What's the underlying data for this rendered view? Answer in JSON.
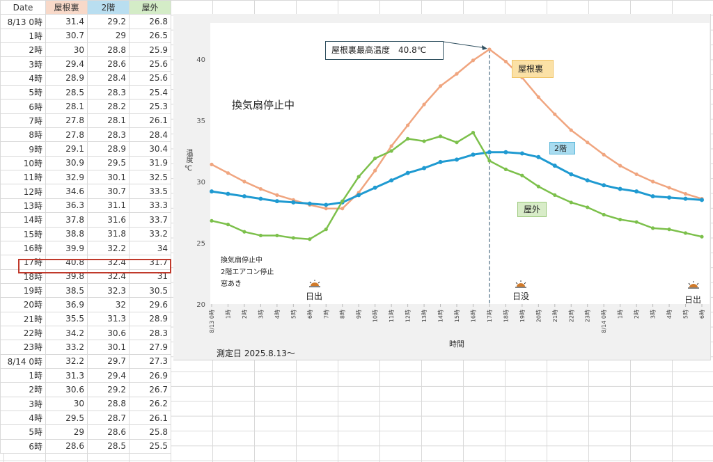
{
  "table": {
    "headers": [
      {
        "label": "Date",
        "bg": "#ffffff"
      },
      {
        "label": "屋根裏",
        "bg": "#f8d9c9"
      },
      {
        "label": "2階",
        "bg": "#b9def0"
      },
      {
        "label": "屋外",
        "bg": "#d4ecc7"
      }
    ],
    "rows": [
      {
        "date": "8/13  0時",
        "roof": "31.4",
        "floor2": "29.2",
        "outdoor": "26.8"
      },
      {
        "date": "1時",
        "roof": "30.7",
        "floor2": "29",
        "outdoor": "26.5"
      },
      {
        "date": "2時",
        "roof": "30",
        "floor2": "28.8",
        "outdoor": "25.9"
      },
      {
        "date": "3時",
        "roof": "29.4",
        "floor2": "28.6",
        "outdoor": "25.6"
      },
      {
        "date": "4時",
        "roof": "28.9",
        "floor2": "28.4",
        "outdoor": "25.6"
      },
      {
        "date": "5時",
        "roof": "28.5",
        "floor2": "28.3",
        "outdoor": "25.4"
      },
      {
        "date": "6時",
        "roof": "28.1",
        "floor2": "28.2",
        "outdoor": "25.3"
      },
      {
        "date": "7時",
        "roof": "27.8",
        "floor2": "28.1",
        "outdoor": "26.1"
      },
      {
        "date": "8時",
        "roof": "27.8",
        "floor2": "28.3",
        "outdoor": "28.4"
      },
      {
        "date": "9時",
        "roof": "29.1",
        "floor2": "28.9",
        "outdoor": "30.4"
      },
      {
        "date": "10時",
        "roof": "30.9",
        "floor2": "29.5",
        "outdoor": "31.9"
      },
      {
        "date": "11時",
        "roof": "32.9",
        "floor2": "30.1",
        "outdoor": "32.5"
      },
      {
        "date": "12時",
        "roof": "34.6",
        "floor2": "30.7",
        "outdoor": "33.5"
      },
      {
        "date": "13時",
        "roof": "36.3",
        "floor2": "31.1",
        "outdoor": "33.3"
      },
      {
        "date": "14時",
        "roof": "37.8",
        "floor2": "31.6",
        "outdoor": "33.7"
      },
      {
        "date": "15時",
        "roof": "38.8",
        "floor2": "31.8",
        "outdoor": "33.2"
      },
      {
        "date": "16時",
        "roof": "39.9",
        "floor2": "32.2",
        "outdoor": "34"
      },
      {
        "date": "17時",
        "roof": "40.8",
        "floor2": "32.4",
        "outdoor": "31.7"
      },
      {
        "date": "18時",
        "roof": "39.8",
        "floor2": "32.4",
        "outdoor": "31"
      },
      {
        "date": "19時",
        "roof": "38.5",
        "floor2": "32.3",
        "outdoor": "30.5"
      },
      {
        "date": "20時",
        "roof": "36.9",
        "floor2": "32",
        "outdoor": "29.6"
      },
      {
        "date": "21時",
        "roof": "35.5",
        "floor2": "31.3",
        "outdoor": "28.9"
      },
      {
        "date": "22時",
        "roof": "34.2",
        "floor2": "30.6",
        "outdoor": "28.3"
      },
      {
        "date": "23時",
        "roof": "33.2",
        "floor2": "30.1",
        "outdoor": "27.9"
      },
      {
        "date": "8/14  0時",
        "roof": "32.2",
        "floor2": "29.7",
        "outdoor": "27.3"
      },
      {
        "date": "1時",
        "roof": "31.3",
        "floor2": "29.4",
        "outdoor": "26.9"
      },
      {
        "date": "2時",
        "roof": "30.6",
        "floor2": "29.2",
        "outdoor": "26.7"
      },
      {
        "date": "3時",
        "roof": "30",
        "floor2": "28.8",
        "outdoor": "26.2"
      },
      {
        "date": "4時",
        "roof": "29.5",
        "floor2": "28.7",
        "outdoor": "26.1"
      },
      {
        "date": "5時",
        "roof": "29",
        "floor2": "28.6",
        "outdoor": "25.8"
      },
      {
        "date": "6時",
        "roof": "28.6",
        "floor2": "28.5",
        "outdoor": "25.5"
      }
    ],
    "highlighted_row_index": 17,
    "highlight_color": "#c0392b"
  },
  "chart_annotations": {
    "peak_callout": "屋根裏最高温度　40.8℃",
    "fan_stop_title": "換気扇停止中",
    "conditions": [
      "換気扇停止中",
      "2階エアコン停止",
      "窓あき"
    ],
    "sunrise_1": "日出",
    "sunset": "日没",
    "sunrise_2": "日出",
    "measure_date": "測定日 2025.8.13～",
    "series_label_roof": "屋根裏",
    "series_label_2f": "2階",
    "series_label_out": "屋外"
  },
  "chart_data": {
    "type": "line",
    "title": "",
    "xlabel": "時間",
    "ylabel": "温度 ℃",
    "ylim": [
      20,
      40
    ],
    "yticks": [
      20,
      25,
      30,
      35,
      40
    ],
    "grid": false,
    "legend_position": "inline labels",
    "x": [
      "8/13 0時",
      "1時",
      "2時",
      "3時",
      "4時",
      "5時",
      "6時",
      "7時",
      "8時",
      "9時",
      "10時",
      "11時",
      "12時",
      "13時",
      "14時",
      "15時",
      "16時",
      "17時",
      "18時",
      "19時",
      "20時",
      "21時",
      "22時",
      "23時",
      "8/14 0時",
      "1時",
      "2時",
      "3時",
      "4時",
      "5時",
      "6時"
    ],
    "series": [
      {
        "name": "屋根裏",
        "color": "#f0a57f",
        "values": [
          31.4,
          30.7,
          30,
          29.4,
          28.9,
          28.5,
          28.1,
          27.8,
          27.8,
          29.1,
          30.9,
          32.9,
          34.6,
          36.3,
          37.8,
          38.8,
          39.9,
          40.8,
          39.8,
          38.5,
          36.9,
          35.5,
          34.2,
          33.2,
          32.2,
          31.3,
          30.6,
          30,
          29.5,
          29,
          28.6
        ]
      },
      {
        "name": "2階",
        "color": "#1f9ad1",
        "values": [
          29.2,
          29,
          28.8,
          28.6,
          28.4,
          28.3,
          28.2,
          28.1,
          28.3,
          28.9,
          29.5,
          30.1,
          30.7,
          31.1,
          31.6,
          31.8,
          32.2,
          32.4,
          32.4,
          32.3,
          32,
          31.3,
          30.6,
          30.1,
          29.7,
          29.4,
          29.2,
          28.8,
          28.7,
          28.6,
          28.5
        ]
      },
      {
        "name": "屋外",
        "color": "#7cc04b",
        "values": [
          26.8,
          26.5,
          25.9,
          25.6,
          25.6,
          25.4,
          25.3,
          26.1,
          28.4,
          30.4,
          31.9,
          32.5,
          33.5,
          33.3,
          33.7,
          33.2,
          34,
          31.7,
          31,
          30.5,
          29.6,
          28.9,
          28.3,
          27.9,
          27.3,
          26.9,
          26.7,
          26.2,
          26.1,
          25.8,
          25.5
        ]
      }
    ],
    "annotations": [
      {
        "type": "callout",
        "x_index": 17,
        "text": "屋根裏最高温度　40.8℃"
      },
      {
        "type": "vline",
        "x_index": 17,
        "style": "dashed"
      },
      {
        "type": "icon",
        "x_index": 6,
        "text": "日出"
      },
      {
        "type": "icon",
        "x_index": 19,
        "text": "日没"
      },
      {
        "type": "icon",
        "x_index": 30,
        "text": "日出"
      }
    ]
  }
}
